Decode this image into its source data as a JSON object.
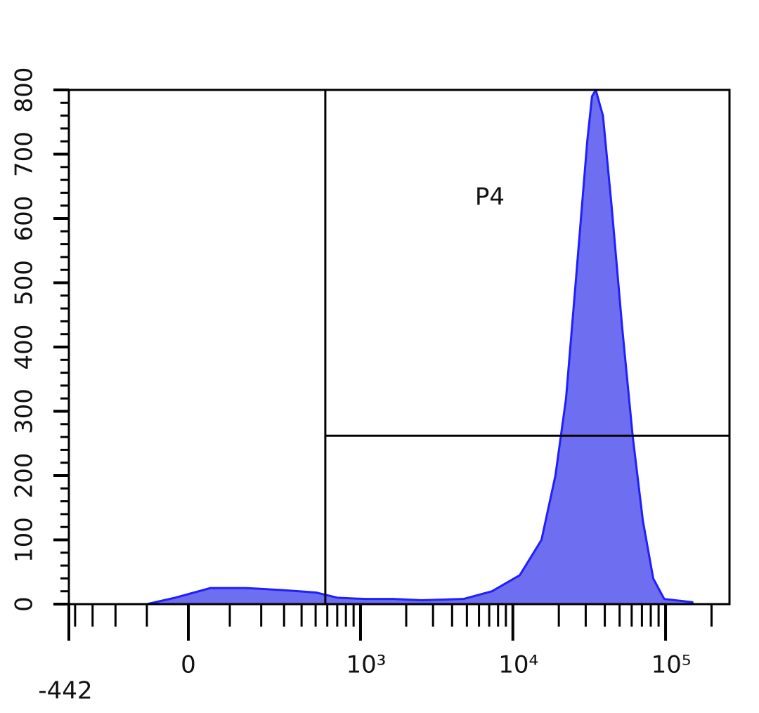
{
  "chart_data": {
    "type": "histogram",
    "xscale": "biexponential",
    "xlim": [
      -442,
      262144
    ],
    "ylim": [
      0,
      800
    ],
    "xticks": [
      -442,
      0,
      {
        "value": 1000,
        "label": "10³"
      },
      {
        "value": 10000,
        "label": "10⁴"
      },
      {
        "value": 100000,
        "label": "10⁵"
      }
    ],
    "xminorticks": [
      -400,
      -300,
      -200,
      -100,
      100,
      200,
      300,
      400,
      500,
      600,
      700,
      800,
      900,
      2000,
      3000,
      4000,
      5000,
      6000,
      7000,
      8000,
      9000,
      20000,
      30000,
      40000,
      50000,
      60000,
      70000,
      80000,
      90000,
      200000
    ],
    "yticks": [
      0,
      100,
      200,
      300,
      400,
      500,
      600,
      700,
      800
    ],
    "yminorticks": [
      20,
      40,
      60,
      80,
      120,
      140,
      160,
      180,
      220,
      240,
      260,
      280,
      320,
      340,
      360,
      380,
      420,
      440,
      460,
      480,
      520,
      540,
      560,
      580,
      620,
      640,
      660,
      680,
      720,
      740,
      760,
      780
    ],
    "color": "#1f1fff",
    "fill": "#6e6ef0",
    "x": [
      -100,
      -30,
      51,
      148,
      285,
      505,
      700,
      1070,
      1650,
      2520,
      4750,
      7300,
      11100,
      15400,
      19000,
      22300,
      26200,
      30700,
      33000,
      34900,
      38900,
      44300,
      52000,
      61000,
      71000,
      83000,
      98000,
      150000
    ],
    "values": [
      0,
      10,
      25,
      25,
      22,
      18,
      10,
      8,
      8,
      6,
      8,
      20,
      45,
      100,
      200,
      320,
      520,
      720,
      790,
      800,
      760,
      620,
      430,
      260,
      130,
      40,
      8,
      3
    ],
    "gate": {
      "label": "P4",
      "x": [
        582,
        262144
      ],
      "y": 262
    }
  }
}
